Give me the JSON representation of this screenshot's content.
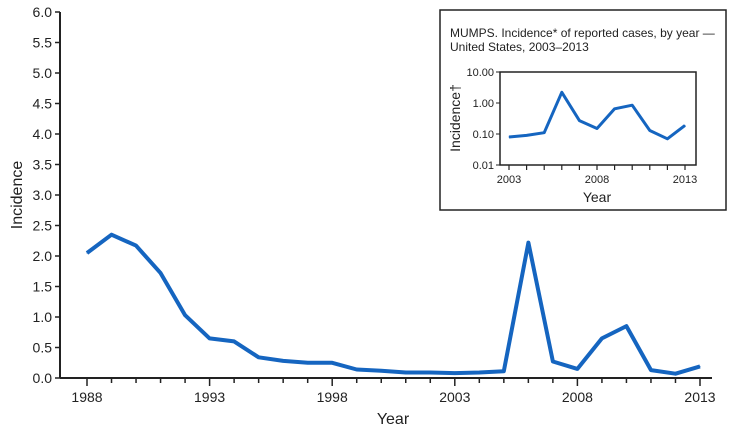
{
  "chart_data": [
    {
      "type": "line",
      "title": "",
      "xlabel": "Year",
      "ylabel": "Incidence",
      "xlim": [
        1988,
        2013
      ],
      "ylim": [
        0,
        6
      ],
      "x_ticks": [
        1988,
        1993,
        1998,
        2003,
        2008,
        2013
      ],
      "y_ticks": [
        "0.0",
        "0.5",
        "1.0",
        "1.5",
        "2.0",
        "2.5",
        "3.0",
        "3.5",
        "4.0",
        "4.5",
        "5.0",
        "5.5",
        "6.0"
      ],
      "grid": false,
      "color": "#1565c0",
      "x": [
        1988,
        1989,
        1990,
        1991,
        1992,
        1993,
        1994,
        1995,
        1996,
        1997,
        1998,
        1999,
        2000,
        2001,
        2002,
        2003,
        2004,
        2005,
        2006,
        2007,
        2008,
        2009,
        2010,
        2011,
        2012,
        2013
      ],
      "values": [
        2.05,
        2.35,
        2.17,
        1.72,
        1.03,
        0.65,
        0.6,
        0.34,
        0.28,
        0.25,
        0.25,
        0.14,
        0.12,
        0.09,
        0.09,
        0.08,
        0.09,
        0.11,
        2.22,
        0.27,
        0.15,
        0.65,
        0.85,
        0.13,
        0.07,
        0.19
      ]
    },
    {
      "type": "line",
      "title": "MUMPS. Incidence* of reported cases, by year —",
      "subtitle": "United States, 2003–2013",
      "xlabel": "Year",
      "ylabel": "Incidence†",
      "scale": "log",
      "xlim": [
        2003,
        2013
      ],
      "ylim": [
        0.01,
        10
      ],
      "x_ticks": [
        2003,
        2008,
        2013
      ],
      "y_ticks": [
        "0.01",
        "0.10",
        "1.00",
        "10.00"
      ],
      "color": "#1565c0",
      "x": [
        2003,
        2004,
        2005,
        2006,
        2007,
        2008,
        2009,
        2010,
        2011,
        2012,
        2013
      ],
      "values": [
        0.08,
        0.09,
        0.11,
        2.22,
        0.27,
        0.15,
        0.65,
        0.85,
        0.13,
        0.07,
        0.19
      ]
    }
  ]
}
